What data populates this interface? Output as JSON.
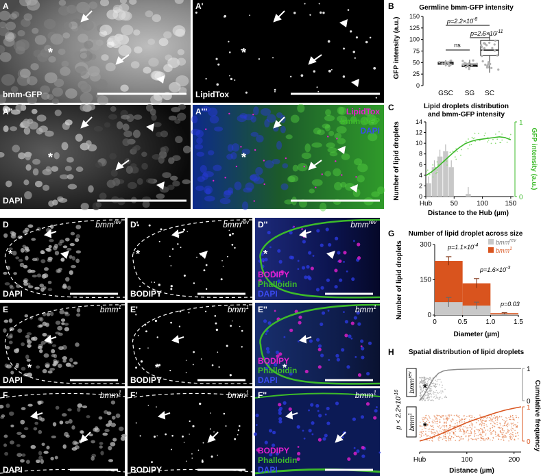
{
  "colors": {
    "green": "#3dbb2a",
    "blue": "#2a2ad8",
    "magenta": "#e61fd0",
    "orange": "#d9541e",
    "gray": "#c0c0c0",
    "darkgray": "#8a8a8a",
    "rev_points": "#9a9a9a",
    "mut_points": "#e06a30"
  },
  "panels": {
    "A": {
      "letter": "A",
      "label": "bmm-GFP"
    },
    "A1": {
      "letter": "A'",
      "label": "LipidTox"
    },
    "A2": {
      "letter": "A''",
      "label": "DAPI"
    },
    "A3": {
      "letter": "A'''",
      "labels": [
        "LipidTox",
        "bmm-GFP",
        "DAPI"
      ]
    },
    "D": {
      "letter": "D",
      "label": "DAPI",
      "genotype": "bmm",
      "superscript": "rev"
    },
    "D1": {
      "letter": "D'",
      "label": "BODIPY",
      "genotype": "bmm",
      "superscript": "rev"
    },
    "D2": {
      "letter": "D''",
      "labels": [
        "BODIPY",
        "Phalloidin",
        "DAPI"
      ],
      "genotype": "bmm",
      "superscript": "rev"
    },
    "E": {
      "letter": "E",
      "label": "DAPI",
      "genotype": "bmm",
      "superscript": "1"
    },
    "E1": {
      "letter": "E'",
      "label": "BODIPY",
      "genotype": "bmm",
      "superscript": "1"
    },
    "E2": {
      "letter": "E''",
      "labels": [
        "BODIPY",
        "Phalloidin",
        "DAPI"
      ],
      "genotype": "bmm",
      "superscript": "1"
    },
    "F": {
      "letter": "F",
      "label": "DAPI",
      "genotype": "bmm",
      "superscript": "1"
    },
    "F1": {
      "letter": "F'",
      "label": "BODIPY",
      "genotype": "bmm",
      "superscript": "1"
    },
    "F2": {
      "letter": "F''",
      "labels": [
        "BODIPY",
        "Phalloidin",
        "DAPI"
      ],
      "genotype": "bmm",
      "superscript": "1"
    }
  },
  "chart_data": [
    {
      "id": "B",
      "type": "box",
      "letter": "B",
      "title": "Germline bmm-GFP intensity",
      "ylabel": "GFP intensity (a.u.)",
      "ylim": [
        0,
        150
      ],
      "yticks": [
        0,
        25,
        50,
        75,
        100,
        125,
        150
      ],
      "categories": [
        "GSC",
        "SG",
        "SC"
      ],
      "boxes": [
        {
          "name": "GSC",
          "min": 42,
          "q1": 46,
          "median": 49,
          "q3": 51,
          "max": 55
        },
        {
          "name": "SG",
          "min": 36,
          "q1": 41,
          "median": 44,
          "q3": 47,
          "max": 56
        },
        {
          "name": "SC",
          "min": 28,
          "q1": 65,
          "median": 77,
          "q3": 98,
          "max": 115
        }
      ],
      "annotations": [
        {
          "text": "p=2.2×10",
          "exp": "-8",
          "pair": [
            "GSC",
            "SC"
          ]
        },
        {
          "text": "p=2.5×10",
          "exp": "-11",
          "pair": [
            "SG",
            "SC"
          ]
        },
        {
          "text": "ns",
          "pair": [
            "GSC",
            "SG"
          ]
        }
      ]
    },
    {
      "id": "C",
      "type": "bar+line",
      "letter": "C",
      "title_lines": [
        "Lipid droplets distribution",
        "and bmm-GFP intensity"
      ],
      "xlabel": "Distance to the Hub (µm)",
      "ylabel": "Number of lipid droplets",
      "y2label": "GFP intensity (a.u.)",
      "xticks": [
        "Hub",
        "50",
        "100",
        "150"
      ],
      "xtick_values": [
        0,
        50,
        100,
        150
      ],
      "xlim": [
        0,
        155
      ],
      "ylim": [
        0,
        14
      ],
      "yticks": [
        0,
        2,
        4,
        6,
        8,
        10,
        12,
        14
      ],
      "y2lim": [
        0,
        1
      ],
      "y2ticks": [
        0,
        1
      ],
      "bars": [
        {
          "x": 5,
          "value": 2.5
        },
        {
          "x": 15,
          "value": 5.5
        },
        {
          "x": 25,
          "value": 7.5
        },
        {
          "x": 35,
          "value": 8.5
        },
        {
          "x": 45,
          "value": 5.5
        },
        {
          "x": 75,
          "value": 0.5
        }
      ],
      "gfp_line": {
        "x": [
          0,
          10,
          20,
          30,
          40,
          50,
          60,
          70,
          80,
          90,
          100,
          110,
          120,
          130,
          140,
          150
        ],
        "y": [
          0.28,
          0.33,
          0.39,
          0.46,
          0.53,
          0.6,
          0.66,
          0.71,
          0.74,
          0.76,
          0.77,
          0.78,
          0.79,
          0.8,
          0.79,
          0.76
        ]
      }
    },
    {
      "id": "G",
      "type": "stacked-bar",
      "letter": "G",
      "title": "Number of lipid droplet across size",
      "xlabel": "Diameter (µm)",
      "ylabel": "Number of lipid droplets",
      "xticks": [
        "0",
        "0.5",
        "1.0",
        "1.5"
      ],
      "xtick_values": [
        0,
        0.5,
        1.0,
        1.5
      ],
      "xlim": [
        0,
        1.5
      ],
      "ylim": [
        0,
        300
      ],
      "yticks": [
        0,
        150,
        300
      ],
      "bins": [
        [
          0,
          0.5
        ],
        [
          0.5,
          1.0
        ],
        [
          1.0,
          1.5
        ]
      ],
      "series": [
        {
          "name": "bmm",
          "sup": "rev",
          "values": [
            55,
            40,
            3
          ],
          "errors": [
            20,
            15,
            1
          ]
        },
        {
          "name": "bmm",
          "sup": "1",
          "values": [
            230,
            135,
            8
          ],
          "errors": [
            18,
            20,
            2
          ]
        }
      ],
      "annotations": [
        {
          "text": "p=1.1×10",
          "exp": "-4"
        },
        {
          "text": "p=1.6×10",
          "exp": "-3"
        },
        {
          "text": "p=0.03"
        }
      ]
    },
    {
      "id": "H",
      "type": "scatter+cumulative",
      "letter": "H",
      "title": "Spatial distribution of lipid droplets",
      "xlabel": "Distance (µm)",
      "y2label": "Cumulative frequency",
      "xticks": [
        "Hub",
        "100",
        "200"
      ],
      "xtick_values": [
        0,
        100,
        200
      ],
      "xlim": [
        0,
        215
      ],
      "y2ticks": [
        0,
        1
      ],
      "pvalue": {
        "text": "p < 2.2×10",
        "exp": "-16"
      },
      "rows": [
        {
          "name": "bmm",
          "sup": "rev",
          "cdf_x": [
            0,
            10,
            20,
            30,
            40,
            50,
            60,
            80,
            100,
            140,
            200,
            215
          ],
          "cdf_y": [
            0,
            0.2,
            0.45,
            0.7,
            0.85,
            0.92,
            0.95,
            0.97,
            0.98,
            0.99,
            1.0,
            1.0
          ]
        },
        {
          "name": "bmm",
          "sup": "1",
          "cdf_x": [
            0,
            20,
            40,
            60,
            80,
            100,
            120,
            140,
            160,
            180,
            200,
            215
          ],
          "cdf_y": [
            0,
            0.08,
            0.18,
            0.3,
            0.42,
            0.54,
            0.64,
            0.73,
            0.82,
            0.9,
            0.96,
            1.0
          ]
        }
      ]
    }
  ]
}
